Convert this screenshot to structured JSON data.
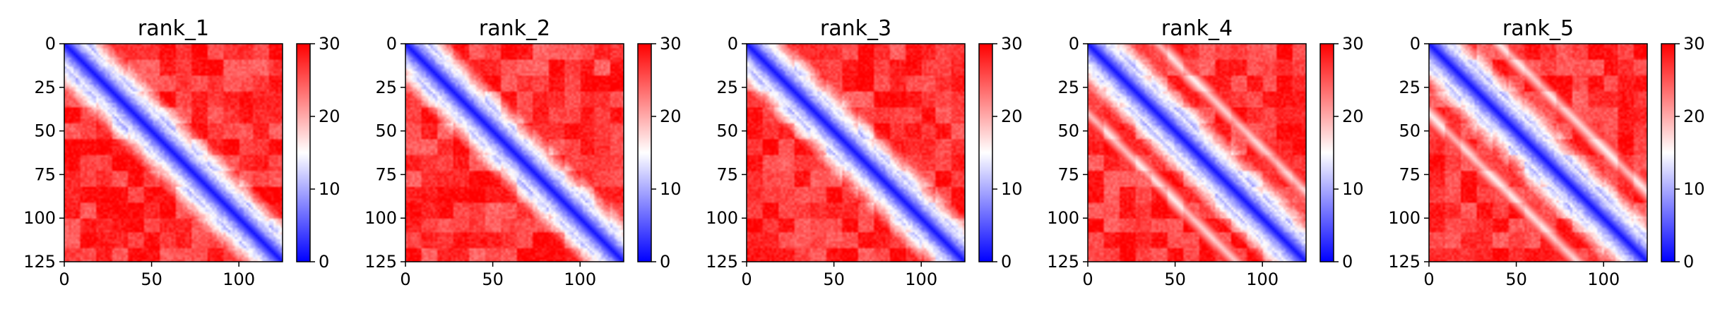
{
  "chart_data": {
    "type": "heatmap",
    "colormap": [
      "#0000ff",
      "#ffffff",
      "#ff0000"
    ],
    "color_range": [
      0,
      30
    ],
    "colorbar_ticks": [
      0,
      10,
      20,
      30
    ],
    "x_ticks": [
      0,
      50,
      100
    ],
    "y_ticks": [
      0,
      25,
      50,
      75,
      100,
      125
    ],
    "xlim": [
      0,
      125
    ],
    "ylim": [
      125,
      0
    ],
    "matrix_size": 125,
    "panels": [
      {
        "title": "rank_1",
        "off_diagonal_band": false
      },
      {
        "title": "rank_2",
        "off_diagonal_band": false
      },
      {
        "title": "rank_3",
        "off_diagonal_band": false
      },
      {
        "title": "rank_4",
        "off_diagonal_band": true
      },
      {
        "title": "rank_5",
        "off_diagonal_band": true
      }
    ]
  }
}
